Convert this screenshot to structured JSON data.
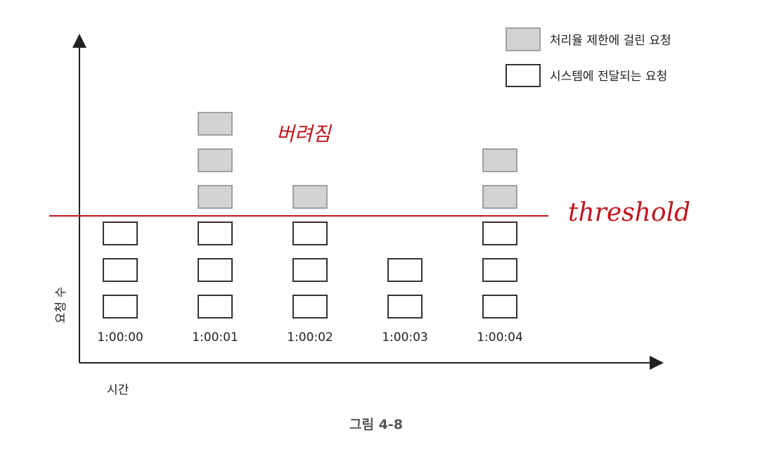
{
  "legend": {
    "dropped_label": "처리율 제한에 걸린 요청",
    "passed_label": "시스템에 전달되는 요청"
  },
  "axes": {
    "y_label": "요청 수",
    "x_label": "시간"
  },
  "annotations": {
    "threshold": "threshold",
    "dropped_handwritten": "버려짐"
  },
  "caption": "그림 4-8",
  "colors": {
    "dropped_fill": "#d3d3d3",
    "passed_fill": "#ffffff",
    "box_stroke": "#333333",
    "threshold_line": "#c0161c"
  },
  "chart_data": {
    "type": "bar",
    "categories": [
      "1:00:00",
      "1:00:01",
      "1:00:02",
      "1:00:03",
      "1:00:04"
    ],
    "threshold": 3,
    "series": [
      {
        "name": "시스템에 전달되는 요청",
        "values": [
          3,
          3,
          3,
          2,
          3
        ]
      },
      {
        "name": "처리율 제한에 걸린 요청",
        "values": [
          0,
          3,
          1,
          0,
          2
        ]
      }
    ]
  }
}
